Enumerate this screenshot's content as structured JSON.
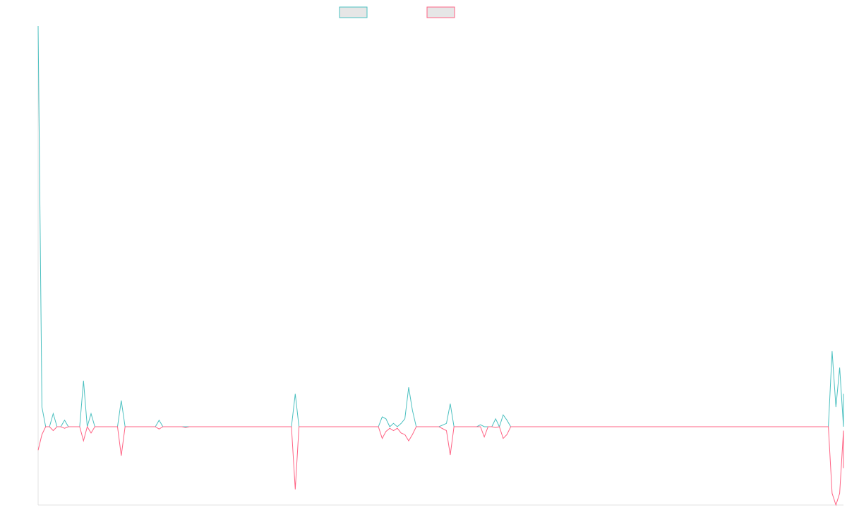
{
  "chart_data": {
    "type": "line",
    "title": "",
    "xlabel": "",
    "ylabel": "",
    "grid": false,
    "legend_position": "top-center",
    "ylim": [
      -10,
      61
    ],
    "x_points": 213,
    "series": [
      {
        "name": "",
        "color": "#4bc0c0",
        "points": [
          [
            0,
            61
          ],
          [
            1,
            3
          ],
          [
            2,
            0
          ],
          [
            3,
            0
          ],
          [
            4,
            2
          ],
          [
            5,
            0
          ],
          [
            6,
            0
          ],
          [
            7,
            1
          ],
          [
            8,
            0
          ],
          [
            9,
            0
          ],
          [
            10,
            0
          ],
          [
            11,
            0
          ],
          [
            12,
            7
          ],
          [
            13,
            0
          ],
          [
            14,
            2
          ],
          [
            15,
            0
          ],
          [
            16,
            0
          ],
          [
            17,
            0
          ],
          [
            18,
            0
          ],
          [
            19,
            0
          ],
          [
            20,
            0
          ],
          [
            21,
            0
          ],
          [
            22,
            4
          ],
          [
            23,
            0
          ],
          [
            24,
            0
          ],
          [
            25,
            0
          ],
          [
            26,
            0
          ],
          [
            27,
            0
          ],
          [
            28,
            0
          ],
          [
            29,
            0
          ],
          [
            30,
            0
          ],
          [
            31,
            0
          ],
          [
            32,
            1
          ],
          [
            33,
            0
          ],
          [
            34,
            0
          ],
          [
            35,
            0
          ],
          [
            40,
            0
          ],
          [
            50,
            0
          ],
          [
            60,
            0
          ],
          [
            67,
            0
          ],
          [
            68,
            5
          ],
          [
            69,
            0
          ],
          [
            80,
            0
          ],
          [
            90,
            0
          ],
          [
            91,
            1.5
          ],
          [
            92,
            1.2
          ],
          [
            93,
            0
          ],
          [
            94,
            0.5
          ],
          [
            95,
            0
          ],
          [
            96,
            0.5
          ],
          [
            97,
            1.2
          ],
          [
            98,
            6
          ],
          [
            99,
            2.5
          ],
          [
            100,
            0
          ],
          [
            103,
            0
          ],
          [
            106,
            0
          ],
          [
            108,
            0.5
          ],
          [
            109,
            3.5
          ],
          [
            110,
            0
          ],
          [
            116,
            0
          ],
          [
            117,
            0.3
          ],
          [
            118,
            0
          ],
          [
            119,
            0
          ],
          [
            120,
            0
          ],
          [
            121,
            1.2
          ],
          [
            122,
            0
          ],
          [
            123,
            1.8
          ],
          [
            124,
            1
          ],
          [
            125,
            0
          ],
          [
            140,
            0
          ],
          [
            160,
            0
          ],
          [
            180,
            0
          ],
          [
            200,
            0
          ],
          [
            209,
            0
          ],
          [
            210,
            11.5
          ],
          [
            211,
            3
          ],
          [
            212,
            9
          ],
          [
            213,
            0
          ],
          [
            214,
            5
          ]
        ]
      },
      {
        "name": "",
        "color": "#ff6384",
        "points": [
          [
            0,
            -3
          ],
          [
            1,
            -1
          ],
          [
            2,
            0
          ],
          [
            3,
            0
          ],
          [
            4,
            -0.5
          ],
          [
            5,
            0
          ],
          [
            6,
            0
          ],
          [
            7,
            -0.2
          ],
          [
            8,
            0
          ],
          [
            9,
            0
          ],
          [
            10,
            0
          ],
          [
            11,
            0
          ],
          [
            12,
            -1.8
          ],
          [
            13,
            0
          ],
          [
            14,
            -0.8
          ],
          [
            15,
            0
          ],
          [
            16,
            0
          ],
          [
            17,
            0
          ],
          [
            18,
            0
          ],
          [
            19,
            0
          ],
          [
            20,
            0
          ],
          [
            21,
            0
          ],
          [
            22,
            -3.7
          ],
          [
            23,
            0
          ],
          [
            24,
            0
          ],
          [
            25,
            0
          ],
          [
            26,
            0
          ],
          [
            27,
            0
          ],
          [
            28,
            0
          ],
          [
            29,
            0
          ],
          [
            30,
            0
          ],
          [
            31,
            0
          ],
          [
            32,
            -0.3
          ],
          [
            33,
            0
          ],
          [
            34,
            0
          ],
          [
            35,
            0
          ],
          [
            38,
            0
          ],
          [
            39,
            -0.1
          ],
          [
            40,
            0
          ],
          [
            50,
            0
          ],
          [
            60,
            0
          ],
          [
            67,
            0
          ],
          [
            68,
            -8
          ],
          [
            69,
            0
          ],
          [
            80,
            0
          ],
          [
            90,
            0
          ],
          [
            91,
            -1.5
          ],
          [
            92,
            -0.6
          ],
          [
            93,
            -0.2
          ],
          [
            94,
            -0.5
          ],
          [
            95,
            -0.2
          ],
          [
            96,
            -0.8
          ],
          [
            97,
            -1.0
          ],
          [
            98,
            -1.8
          ],
          [
            99,
            -1
          ],
          [
            100,
            0
          ],
          [
            103,
            0
          ],
          [
            106,
            0
          ],
          [
            108,
            -0.5
          ],
          [
            109,
            -3.6
          ],
          [
            110,
            0
          ],
          [
            116,
            0
          ],
          [
            117,
            0
          ],
          [
            118,
            -1.3
          ],
          [
            119,
            0
          ],
          [
            120,
            0
          ],
          [
            121,
            -0.1
          ],
          [
            122,
            0
          ],
          [
            123,
            -1.5
          ],
          [
            124,
            -1
          ],
          [
            125,
            0
          ],
          [
            140,
            0
          ],
          [
            160,
            0
          ],
          [
            180,
            0
          ],
          [
            200,
            0
          ],
          [
            209,
            0
          ],
          [
            210,
            -8.5
          ],
          [
            211,
            -10
          ],
          [
            212,
            -8.5
          ],
          [
            213,
            -0.5
          ],
          [
            214,
            -5.3
          ]
        ]
      }
    ]
  }
}
